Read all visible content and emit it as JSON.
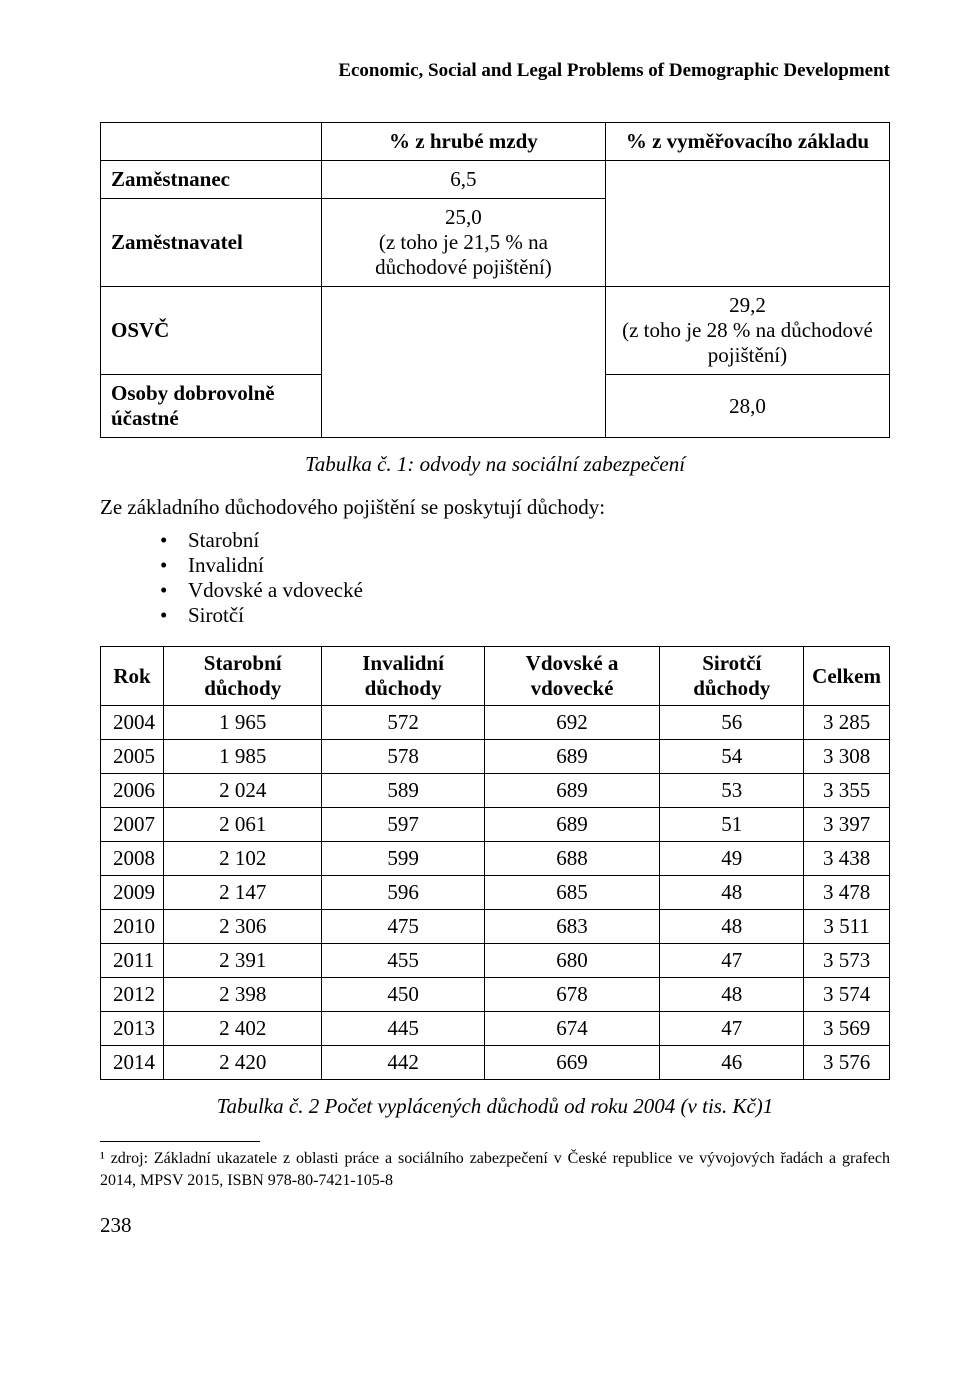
{
  "header": "Economic, Social and Legal Problems of Demographic Development",
  "table1": {
    "col1_header": "% z hrubé mzdy",
    "col2_header": "% z vyměřovacího základu",
    "rows": {
      "r1_label": "Zaměstnanec",
      "r1_c1": "6,5",
      "r2_label": "Zaměstnavatel",
      "r2_c1": "25,0\n(z toho je 21,5 % na důchodové pojištění)",
      "r3_label": "OSVČ",
      "r3_c2": "29,2\n(z toho je 28 % na důchodové pojištění)",
      "r4_label": "Osoby dobrovolně účastné",
      "r4_c2": "28,0"
    },
    "caption": "Tabulka č. 1: odvody na sociální zabezpečení"
  },
  "paragraph1": "Ze základního důchodového pojištění se poskytují důchody:",
  "bullets": [
    "Starobní",
    "Invalidní",
    "Vdovské a vdovecké",
    "Sirotčí"
  ],
  "table2": {
    "headers": [
      "Rok",
      "Starobní důchody",
      "Invalidní důchody",
      "Vdovské a vdovecké",
      "Sirotčí důchody",
      "Celkem"
    ],
    "rows": [
      [
        "2004",
        "1 965",
        "572",
        "692",
        "56",
        "3 285"
      ],
      [
        "2005",
        "1 985",
        "578",
        "689",
        "54",
        "3 308"
      ],
      [
        "2006",
        "2 024",
        "589",
        "689",
        "53",
        "3 355"
      ],
      [
        "2007",
        "2 061",
        "597",
        "689",
        "51",
        "3 397"
      ],
      [
        "2008",
        "2 102",
        "599",
        "688",
        "49",
        "3 438"
      ],
      [
        "2009",
        "2 147",
        "596",
        "685",
        "48",
        "3 478"
      ],
      [
        "2010",
        "2 306",
        "475",
        "683",
        "48",
        "3 511"
      ],
      [
        "2011",
        "2 391",
        "455",
        "680",
        "47",
        "3 573"
      ],
      [
        "2012",
        "2 398",
        "450",
        "678",
        "48",
        "3 574"
      ],
      [
        "2013",
        "2 402",
        "445",
        "674",
        "47",
        "3 569"
      ],
      [
        "2014",
        "2 420",
        "442",
        "669",
        "46",
        "3 576"
      ]
    ],
    "caption": "Tabulka č. 2 Počet vyplácených důchodů od roku 2004 (v tis. Kč)1"
  },
  "footnote": "¹ zdroj: Základní ukazatele z oblasti práce a sociálního zabezpečení v České republice ve vývojových řadách a grafech 2014, MPSV 2015, ISBN 978-80-7421-105-8",
  "page_number": "238"
}
